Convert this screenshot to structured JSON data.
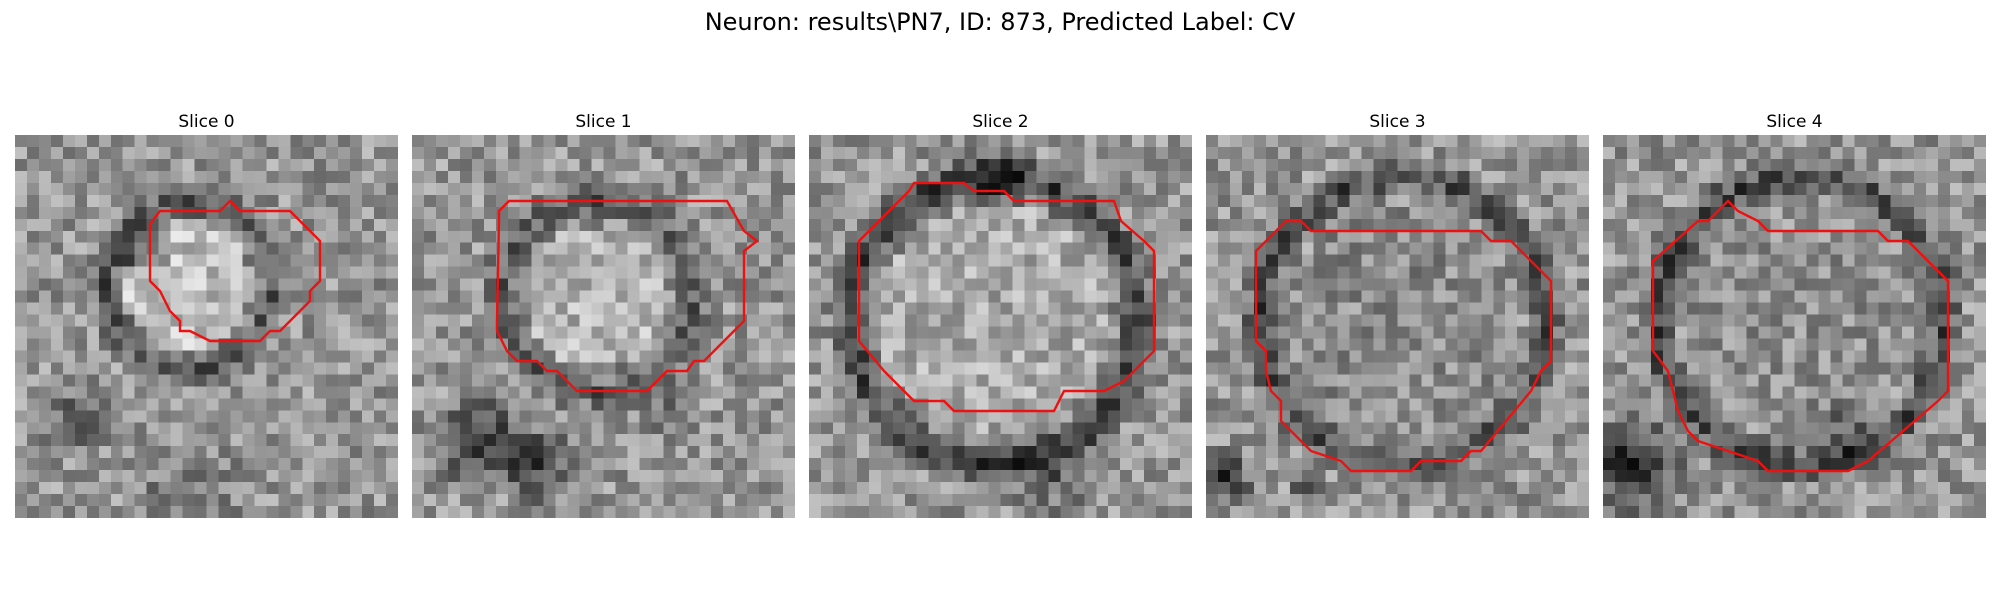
{
  "figure": {
    "title": "Neuron: results\\PN7, ID: 873, Predicted Label: CV",
    "contour_color": "#ee1111"
  },
  "panels": [
    {
      "title": "Slice 0"
    },
    {
      "title": "Slice 1"
    },
    {
      "title": "Slice 2"
    },
    {
      "title": "Slice 3"
    },
    {
      "title": "Slice 4"
    }
  ]
}
